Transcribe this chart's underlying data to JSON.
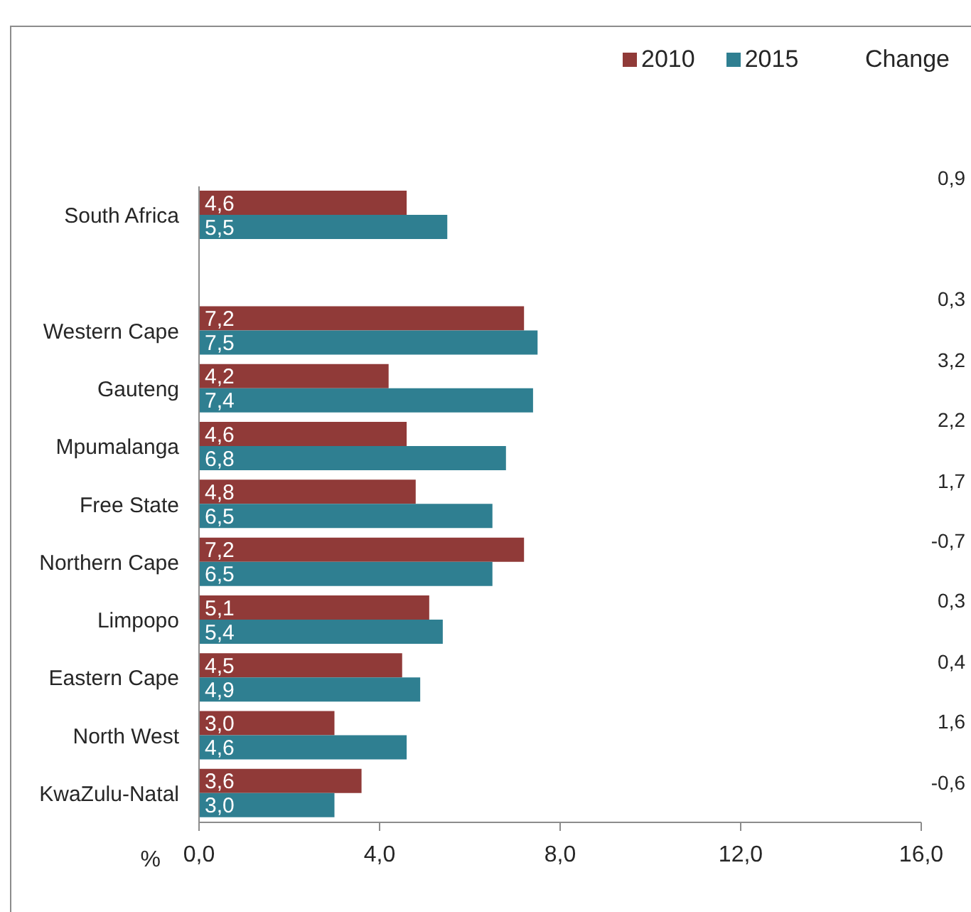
{
  "chart_data": {
    "type": "bar",
    "orientation": "horizontal",
    "categories": [
      "South Africa",
      null,
      "Western Cape",
      "Gauteng",
      "Mpumalanga",
      "Free State",
      "Northern Cape",
      "Limpopo",
      "Eastern Cape",
      "North West",
      "KwaZulu-Natal"
    ],
    "series": [
      {
        "name": "2010",
        "color": "#903a38",
        "values": [
          4.6,
          null,
          7.2,
          4.2,
          4.6,
          4.8,
          7.2,
          5.1,
          4.5,
          3.0,
          3.6
        ],
        "value_labels": [
          "4,6",
          null,
          "7,2",
          "4,2",
          "4,6",
          "4,8",
          "7,2",
          "5,1",
          "4,5",
          "3,0",
          "3,6"
        ]
      },
      {
        "name": "2015",
        "color": "#2f7f91",
        "values": [
          5.5,
          null,
          7.5,
          7.4,
          6.8,
          6.5,
          6.5,
          5.4,
          4.9,
          4.6,
          3.0
        ],
        "value_labels": [
          "5,5",
          null,
          "7,5",
          "7,4",
          "6,8",
          "6,5",
          "6,5",
          "5,4",
          "4,9",
          "4,6",
          "3,0"
        ]
      }
    ],
    "xlabel": "%",
    "xlim": [
      0,
      16
    ],
    "xticks": [
      {
        "value": 0,
        "label": "0,0"
      },
      {
        "value": 4,
        "label": "4,0"
      },
      {
        "value": 8,
        "label": "8,0"
      },
      {
        "value": 12,
        "label": "12,0"
      },
      {
        "value": 16,
        "label": "16,0"
      }
    ],
    "legend": "top right",
    "annotations": [
      "Change",
      "0,9",
      "0,3",
      "3,2",
      "2,2",
      "1,7",
      "-0,7",
      "0,3",
      "0,4",
      "1,6",
      "-0,6"
    ]
  }
}
